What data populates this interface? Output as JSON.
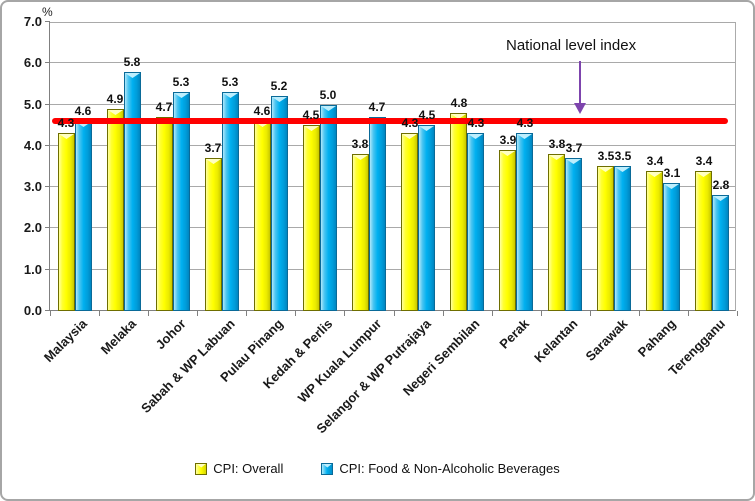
{
  "chart_data": {
    "type": "bar",
    "title": "",
    "y_axis": {
      "unit_label": "%",
      "min": 0,
      "max": 7,
      "tick_step": 1,
      "tick_decimals": 1
    },
    "categories": [
      "Malaysia",
      "Melaka",
      "Johor",
      "Sabah & WP Labuan",
      "Pulau Pinang",
      "Kedah & Perlis",
      "WP Kuala Lumpur",
      "Selangor & WP Putrajaya",
      "Negeri Sembilan",
      "Perak",
      "Kelantan",
      "Sarawak",
      "Pahang",
      "Terengganu"
    ],
    "series": [
      {
        "name": "CPI: Overall",
        "color": "#FFFF00",
        "values": [
          4.3,
          4.9,
          4.7,
          3.7,
          4.6,
          4.5,
          3.8,
          4.3,
          4.8,
          3.9,
          3.8,
          3.5,
          3.4,
          3.4
        ]
      },
      {
        "name": "CPI: Food & Non-Alcoholic Beverages",
        "color": "#00B0F0",
        "values": [
          4.6,
          5.8,
          5.3,
          5.3,
          5.2,
          5.0,
          4.7,
          4.5,
          4.3,
          4.3,
          3.7,
          3.5,
          3.1,
          2.8
        ]
      }
    ],
    "data_labels": true,
    "grid": true,
    "legend_position": "bottom",
    "reference_line": {
      "value": 4.6,
      "color": "#FF0000"
    },
    "annotation": {
      "text": "National level index",
      "arrow_color": "#7D44AD"
    }
  }
}
